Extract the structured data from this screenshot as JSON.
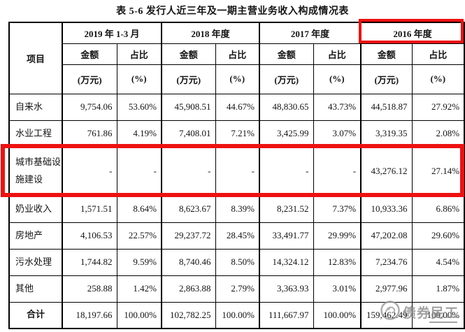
{
  "title": "表 5-6 发行人近三年及一期主营业务收入构成情况表",
  "table": {
    "item_header": "项目",
    "year_groups": [
      "2019 年 1-3 月",
      "2018 年度",
      "2017 年度",
      "2016 年度"
    ],
    "sub_headers": {
      "amount": "金额",
      "ratio": "占比",
      "amount_unit": "(万元)",
      "ratio_unit": "(%)"
    },
    "rows": [
      {
        "label": "自来水",
        "cells": [
          "9,754.06",
          "53.60%",
          "45,908.51",
          "44.67%",
          "48,830.65",
          "43.73%",
          "44,518.87",
          "27.92%"
        ]
      },
      {
        "label": "水业工程",
        "cells": [
          "761.86",
          "4.19%",
          "7,408.01",
          "7.21%",
          "3,425.99",
          "3.07%",
          "3,319.35",
          "2.08%"
        ]
      },
      {
        "label": "城市基础设施建设",
        "cells": [
          "-",
          "-",
          "-",
          "-",
          "-",
          "-",
          "43,276.12",
          "27.14%"
        ]
      },
      {
        "label": "奶业收入",
        "cells": [
          "1,571.51",
          "8.64%",
          "8,623.67",
          "8.39%",
          "8,231.52",
          "7.37%",
          "10,933.36",
          "6.86%"
        ]
      },
      {
        "label": "房地产",
        "cells": [
          "4,106.53",
          "22.57%",
          "29,237.72",
          "28.45%",
          "33,491.77",
          "29.99%",
          "47,202.08",
          "29.60%"
        ]
      },
      {
        "label": "污水处理",
        "cells": [
          "1,744.82",
          "9.59%",
          "8,740.46",
          "8.50%",
          "14,324.12",
          "12.83%",
          "7,234.76",
          "4.54%"
        ]
      },
      {
        "label": "其他",
        "cells": [
          "258.88",
          "1.42%",
          "2,863.88",
          "2.79%",
          "3,363.93",
          "3.01%",
          "2,977.96",
          "1.87%"
        ]
      },
      {
        "label": "合计",
        "cells": [
          "18,197.66",
          "100.00%",
          "102,782.25",
          "100.00%",
          "111,667.97",
          "100.00%",
          "159,462.49",
          "100.00%"
        ]
      }
    ],
    "highlights": {
      "row_index": 2,
      "row_label": "城市基础设施建设",
      "year_group": "2016 年度",
      "color": "#ee1111"
    }
  },
  "watermark": {
    "text": "债券民工"
  }
}
